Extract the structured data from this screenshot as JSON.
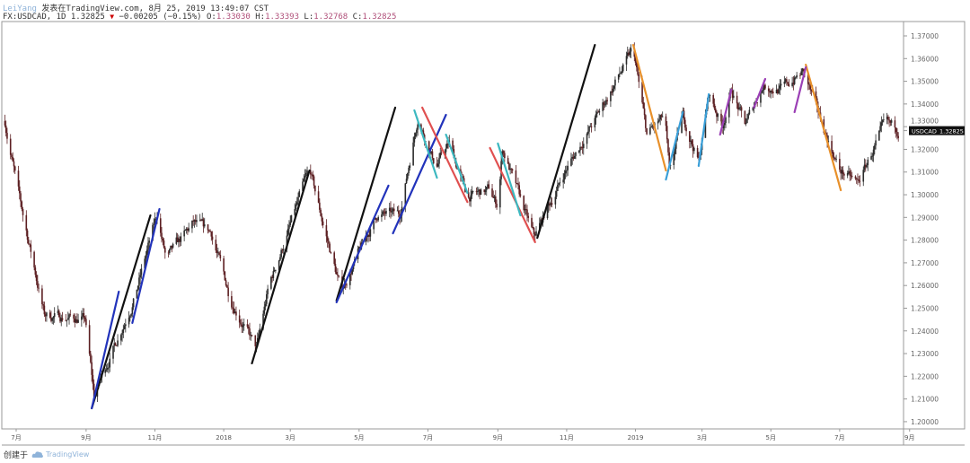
{
  "header": {
    "author": "LeiYang",
    "published": "发表在TradingView.com, 8月 25, 2019 13:49:07 CST",
    "symbol_line": "FX:USDCAD, 1D 1.32825",
    "change": "−0.00205 (−0.15%)",
    "o_label": "O:",
    "o": "1.33030",
    "h_label": "H:",
    "h": "1.33393",
    "l_label": "L:",
    "l": "1.32768",
    "c_label": "C:",
    "c": "1.32825",
    "direction_icon": "triangle-down-icon"
  },
  "footer": {
    "created_with": "创建于",
    "brand": "TradingView",
    "brand_icon": "tradingview-cloud-icon"
  },
  "colors": {
    "up": "#2b2b2b",
    "down": "#5c1f22",
    "axis": "#888888",
    "label_bg": "#111111"
  },
  "chart_data": {
    "type": "candlestick",
    "symbol": "USDCAD",
    "interval": "1D",
    "last_price": "1.32825",
    "price_label": "USDCAD",
    "ylim": [
      1.195,
      1.375
    ],
    "y_ticks": [
      "1.37000",
      "1.36000",
      "1.35000",
      "1.34000",
      "1.33000",
      "1.32000",
      "1.31000",
      "1.30000",
      "1.29000",
      "1.28000",
      "1.27000",
      "1.26000",
      "1.25000",
      "1.24000",
      "1.23000",
      "1.22000",
      "1.21000",
      "1.20000"
    ],
    "x_ticks": [
      {
        "date": "2017-07-01",
        "label": "7月"
      },
      {
        "date": "2017-09-01",
        "label": "9月"
      },
      {
        "date": "2017-11-01",
        "label": "11月"
      },
      {
        "date": "2018-01-01",
        "label": "2018"
      },
      {
        "date": "2018-03-01",
        "label": "3月"
      },
      {
        "date": "2018-05-01",
        "label": "5月"
      },
      {
        "date": "2018-07-01",
        "label": "7月"
      },
      {
        "date": "2018-09-01",
        "label": "9月"
      },
      {
        "date": "2018-11-01",
        "label": "11月"
      },
      {
        "date": "2019-01-01",
        "label": "2019"
      },
      {
        "date": "2019-03-01",
        "label": "3月"
      },
      {
        "date": "2019-05-01",
        "label": "5月"
      },
      {
        "date": "2019-07-01",
        "label": "7月"
      },
      {
        "date": "2019-09-01",
        "label": "9月"
      }
    ],
    "price_path": [
      [
        "2017-06-21",
        1.3325
      ],
      [
        "2017-07-03",
        1.3004
      ],
      [
        "2017-07-26",
        1.247
      ],
      [
        "2017-08-31",
        1.2451
      ],
      [
        "2017-09-08",
        1.2115
      ],
      [
        "2017-10-14",
        1.255
      ],
      [
        "2017-11-03",
        1.2911
      ],
      [
        "2017-11-11",
        1.2713
      ],
      [
        "2017-12-05",
        1.2871
      ],
      [
        "2017-12-21",
        1.2832
      ],
      [
        "2018-01-06",
        1.2555
      ],
      [
        "2018-01-30",
        1.2318
      ],
      [
        "2018-02-10",
        1.2595
      ],
      [
        "2018-03-18",
        1.3111
      ],
      [
        "2018-03-30",
        1.2872
      ],
      [
        "2018-04-15",
        1.2575
      ],
      [
        "2018-05-17",
        1.2911
      ],
      [
        "2018-06-06",
        1.2911
      ],
      [
        "2018-06-22",
        1.3345
      ],
      [
        "2018-07-08",
        1.3127
      ],
      [
        "2018-07-20",
        1.3226
      ],
      [
        "2018-08-05",
        1.2989
      ],
      [
        "2018-08-24",
        1.302
      ],
      [
        "2018-09-01",
        1.295
      ],
      [
        "2018-09-05",
        1.3206
      ],
      [
        "2018-10-03",
        1.281
      ],
      [
        "2018-10-31",
        1.3107
      ],
      [
        "2018-11-28",
        1.3345
      ],
      [
        "2018-12-30",
        1.364
      ],
      [
        "2019-01-11",
        1.3265
      ],
      [
        "2019-01-27",
        1.3344
      ],
      [
        "2019-01-31",
        1.3088
      ],
      [
        "2019-02-12",
        1.3344
      ],
      [
        "2019-02-26",
        1.3147
      ],
      [
        "2019-03-07",
        1.3443
      ],
      [
        "2019-03-19",
        1.3305
      ],
      [
        "2019-03-27",
        1.3463
      ],
      [
        "2019-04-08",
        1.3305
      ],
      [
        "2019-04-24",
        1.3483
      ],
      [
        "2019-05-10",
        1.3463
      ],
      [
        "2019-05-30",
        1.3542
      ],
      [
        "2019-06-07",
        1.3423
      ],
      [
        "2019-07-01",
        1.3107
      ],
      [
        "2019-07-17",
        1.3048
      ],
      [
        "2019-08-10",
        1.3305
      ],
      [
        "2019-08-22",
        1.3285
      ]
    ],
    "trend_lines": [
      {
        "color": "#111111",
        "from": [
          "2017-09-06",
          1.2059
        ],
        "to": [
          "2017-10-28",
          1.2909
        ]
      },
      {
        "color": "#111111",
        "from": [
          "2018-01-26",
          1.2257
        ],
        "to": [
          "2018-03-18",
          1.3107
        ]
      },
      {
        "color": "#111111",
        "from": [
          "2018-04-11",
          1.2534
        ],
        "to": [
          "2018-06-02",
          1.3384
        ]
      },
      {
        "color": "#111111",
        "from": [
          "2018-10-06",
          1.281
        ],
        "to": [
          "2018-11-26",
          1.366
        ]
      },
      {
        "color": "#2233bb",
        "from": [
          "2017-09-06",
          1.2059
        ],
        "to": [
          "2017-09-30",
          1.2573
        ]
      },
      {
        "color": "#2233bb",
        "from": [
          "2017-10-12",
          1.2435
        ],
        "to": [
          "2017-11-05",
          1.2937
        ]
      },
      {
        "color": "#2233bb",
        "from": [
          "2018-04-11",
          1.2526
        ],
        "to": [
          "2018-05-27",
          1.304
        ]
      },
      {
        "color": "#2233bb",
        "from": [
          "2018-05-31",
          1.283
        ],
        "to": [
          "2018-07-17",
          1.3352
        ]
      },
      {
        "color": "#e05050",
        "from": [
          "2018-06-26",
          1.3384
        ],
        "to": [
          "2018-08-05",
          1.2968
        ]
      },
      {
        "color": "#e05050",
        "from": [
          "2018-08-25",
          1.3206
        ],
        "to": [
          "2018-10-04",
          1.2791
        ]
      },
      {
        "color": "#3cb8c0",
        "from": [
          "2018-06-19",
          1.3372
        ],
        "to": [
          "2018-07-09",
          1.3075
        ]
      },
      {
        "color": "#3cb8c0",
        "from": [
          "2018-07-17",
          1.3265
        ],
        "to": [
          "2018-08-05",
          1.3008
        ]
      },
      {
        "color": "#3cb8c0",
        "from": [
          "2018-09-01",
          1.3226
        ],
        "to": [
          "2018-09-21",
          1.2909
        ]
      },
      {
        "color": "#e8902a",
        "from": [
          "2018-12-30",
          1.366
        ],
        "to": [
          "2019-01-28",
          1.3107
        ]
      },
      {
        "color": "#e8902a",
        "from": [
          "2019-06-01",
          1.3573
        ],
        "to": [
          "2019-07-02",
          1.302
        ]
      },
      {
        "color": "#3a9fd8",
        "from": [
          "2019-01-28",
          1.3067
        ],
        "to": [
          "2019-02-12",
          1.3364
        ]
      },
      {
        "color": "#3a9fd8",
        "from": [
          "2019-02-26",
          1.3127
        ],
        "to": [
          "2019-03-07",
          1.3443
        ]
      },
      {
        "color": "#9b3fb5",
        "from": [
          "2019-03-17",
          1.3265
        ],
        "to": [
          "2019-03-27",
          1.3463
        ]
      },
      {
        "color": "#9b3fb5",
        "from": [
          "2019-04-16",
          1.3384
        ],
        "to": [
          "2019-04-26",
          1.351
        ]
      },
      {
        "color": "#9b3fb5",
        "from": [
          "2019-05-22",
          1.3364
        ],
        "to": [
          "2019-06-01",
          1.3562
        ]
      }
    ],
    "grid": false
  }
}
